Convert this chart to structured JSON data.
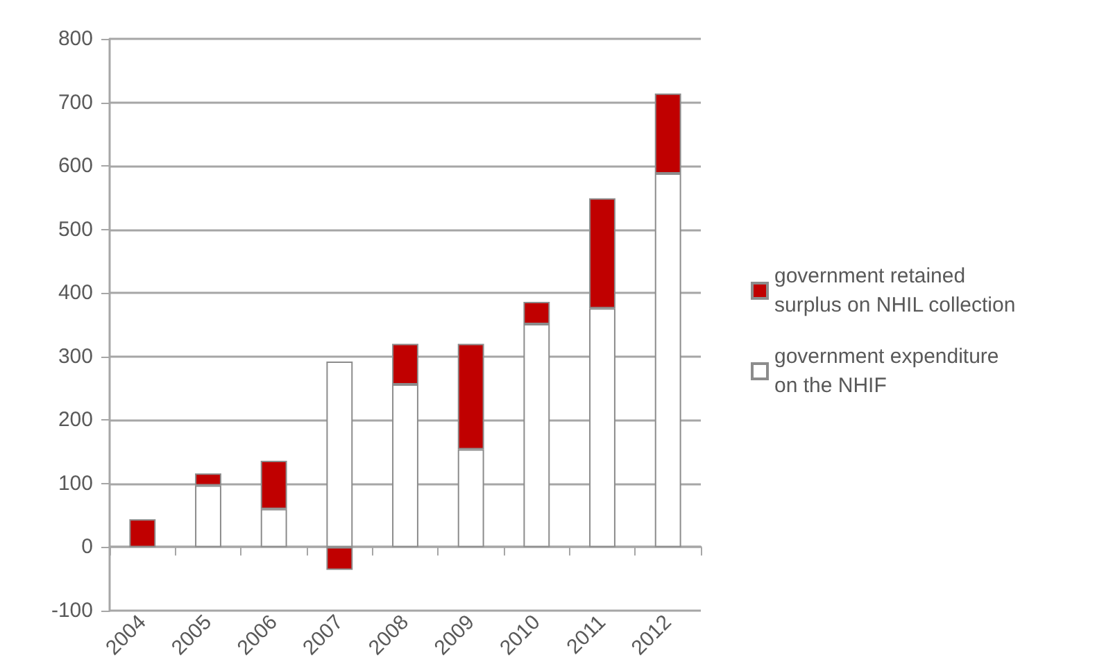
{
  "chart_data": {
    "type": "bar",
    "stacked": true,
    "categories": [
      "2004",
      "2005",
      "2006",
      "2007",
      "2008",
      "2009",
      "2010",
      "2011",
      "2012"
    ],
    "series": [
      {
        "name": "government expenditure on the NHIF",
        "color": "#ffffff",
        "values": [
          null,
          97,
          60,
          292,
          256,
          154,
          351,
          376,
          588
        ]
      },
      {
        "name": "government retained surplus on NHIL collection",
        "color": "#c00000",
        "values": [
          44,
          19,
          76,
          -36,
          64,
          166,
          35,
          173,
          126
        ]
      }
    ],
    "ylim": [
      -100,
      800
    ],
    "yticks": [
      -100,
      0,
      100,
      200,
      300,
      400,
      500,
      600,
      700,
      800
    ],
    "grid": "y",
    "legend": "right"
  }
}
